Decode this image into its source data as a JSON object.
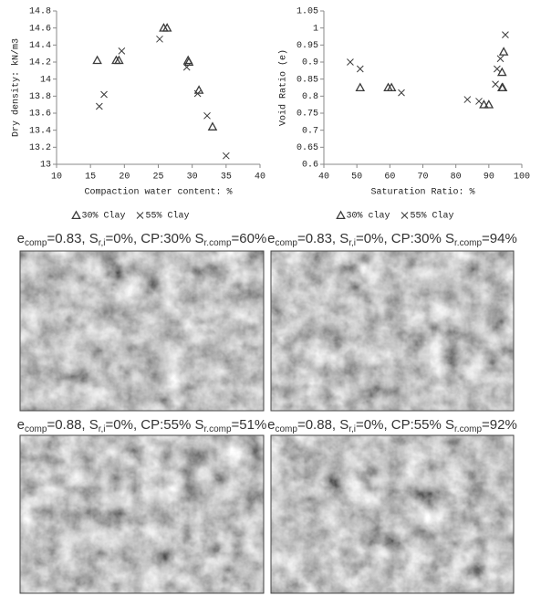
{
  "chart_data": [
    {
      "type": "scatter",
      "xlabel": "Compaction water content: %",
      "ylabel": "Dry density: kN/m3",
      "xlim": [
        10,
        40
      ],
      "xticks": [
        10,
        15,
        20,
        25,
        30,
        35,
        40
      ],
      "ylim": [
        13,
        14.8
      ],
      "yticks": [
        13,
        13.2,
        13.4,
        13.6,
        13.8,
        14,
        14.2,
        14.4,
        14.6,
        14.8
      ],
      "series": [
        {
          "name": "30% Clay",
          "marker": "triangle",
          "color": "#3a3a3a",
          "x": [
            16,
            18.8,
            19.2,
            25.8,
            26.3,
            29.4,
            29.5,
            31,
            33
          ],
          "values": [
            14.22,
            14.22,
            14.22,
            14.6,
            14.6,
            14.22,
            14.2,
            13.87,
            13.44
          ]
        },
        {
          "name": "55% Clay",
          "marker": "cross",
          "color": "#3a3a3a",
          "x": [
            16.3,
            17,
            19.6,
            25.2,
            29.2,
            30.8,
            32.2,
            35
          ],
          "values": [
            13.68,
            13.82,
            14.33,
            14.47,
            14.14,
            13.83,
            13.57,
            13.1
          ]
        }
      ]
    },
    {
      "type": "scatter",
      "xlabel": "Saturation Ratio: %",
      "ylabel": "Void Ratio (e)",
      "xlim": [
        40,
        100
      ],
      "xticks": [
        40,
        50,
        60,
        70,
        80,
        90,
        100
      ],
      "ylim": [
        0.6,
        1.05
      ],
      "yticks": [
        0.6,
        0.65,
        0.7,
        0.75,
        0.8,
        0.85,
        0.9,
        0.95,
        1,
        1.05
      ],
      "series": [
        {
          "name": "30% clay",
          "marker": "triangle",
          "color": "#3a3a3a",
          "x": [
            51,
            59.5,
            60.5,
            88.5,
            90,
            94,
            94.2,
            94,
            94.5
          ],
          "values": [
            0.825,
            0.825,
            0.825,
            0.775,
            0.775,
            0.825,
            0.825,
            0.87,
            0.93
          ]
        },
        {
          "name": "55% Clay",
          "marker": "cross",
          "color": "#3a3a3a",
          "x": [
            48,
            51,
            63.5,
            83.5,
            87,
            92,
            92.5,
            93.5,
            95
          ],
          "values": [
            0.9,
            0.88,
            0.81,
            0.79,
            0.785,
            0.835,
            0.88,
            0.91,
            0.98
          ]
        }
      ]
    }
  ],
  "panels": [
    {
      "caption": [
        "e",
        "comp",
        "=0.83, S",
        "r,i",
        "=0%, CP:30% S",
        "r.comp",
        "=60%"
      ]
    },
    {
      "caption": [
        "e",
        "comp",
        "=0.83, S",
        "r,i",
        "=0%, CP:30% S",
        "r.comp",
        "=94%"
      ]
    },
    {
      "caption": [
        "e",
        "comp",
        "=0.88, S",
        "r,i",
        "=0%, CP:55% S",
        "r.comp",
        "=51%"
      ]
    },
    {
      "caption": [
        "e",
        "comp",
        "=0.88, S",
        "r,i",
        "=0%, CP:55% S",
        "r.comp",
        "=92%"
      ]
    }
  ]
}
